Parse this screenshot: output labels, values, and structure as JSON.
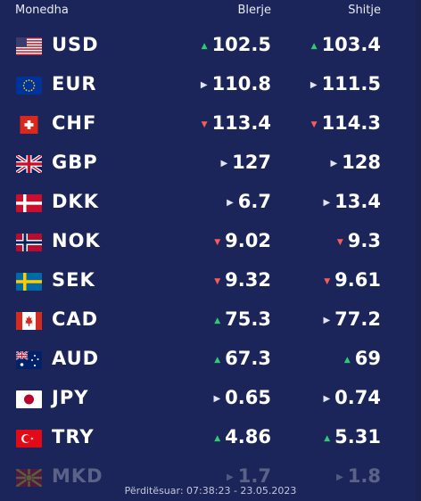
{
  "header": {
    "currency": "Monedha",
    "buy": "Blerje",
    "sell": "Shitje"
  },
  "rates": [
    {
      "flag": "us-flag-icon",
      "code": "USD",
      "buy": "102.5",
      "buy_trend": "up",
      "sell": "103.4",
      "sell_trend": "up"
    },
    {
      "flag": "eu-flag-icon",
      "code": "EUR",
      "buy": "110.8",
      "buy_trend": "neutral",
      "sell": "111.5",
      "sell_trend": "neutral"
    },
    {
      "flag": "ch-flag-icon",
      "code": "CHF",
      "buy": "113.4",
      "buy_trend": "down",
      "sell": "114.3",
      "sell_trend": "down"
    },
    {
      "flag": "gb-flag-icon",
      "code": "GBP",
      "buy": "127",
      "buy_trend": "neutral",
      "sell": "128",
      "sell_trend": "neutral"
    },
    {
      "flag": "dk-flag-icon",
      "code": "DKK",
      "buy": "6.7",
      "buy_trend": "neutral",
      "sell": "13.4",
      "sell_trend": "neutral"
    },
    {
      "flag": "no-flag-icon",
      "code": "NOK",
      "buy": "9.02",
      "buy_trend": "down",
      "sell": "9.3",
      "sell_trend": "down"
    },
    {
      "flag": "se-flag-icon",
      "code": "SEK",
      "buy": "9.32",
      "buy_trend": "down",
      "sell": "9.61",
      "sell_trend": "down"
    },
    {
      "flag": "ca-flag-icon",
      "code": "CAD",
      "buy": "75.3",
      "buy_trend": "up",
      "sell": "77.2",
      "sell_trend": "neutral"
    },
    {
      "flag": "au-flag-icon",
      "code": "AUD",
      "buy": "67.3",
      "buy_trend": "up",
      "sell": "69",
      "sell_trend": "up"
    },
    {
      "flag": "jp-flag-icon",
      "code": "JPY",
      "buy": "0.65",
      "buy_trend": "neutral",
      "sell": "0.74",
      "sell_trend": "neutral"
    },
    {
      "flag": "tr-flag-icon",
      "code": "TRY",
      "buy": "4.86",
      "buy_trend": "up",
      "sell": "5.31",
      "sell_trend": "up"
    },
    {
      "flag": "mk-flag-icon",
      "code": "MKD",
      "buy": "1.7",
      "buy_trend": "neutral",
      "sell": "1.8",
      "sell_trend": "neutral"
    }
  ],
  "footer": {
    "updated": "Përditësuar: 07:38:23 - 23.05.2023"
  },
  "colors": {
    "background": "#1c2559",
    "up": "#2ecc71",
    "down": "#ff5a5a",
    "neutral": "#dfe3f2"
  }
}
